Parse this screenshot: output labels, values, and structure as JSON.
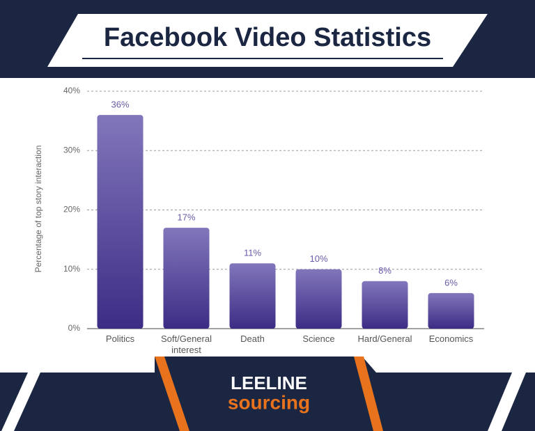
{
  "chart_data": {
    "type": "bar",
    "title": "Facebook Video Statistics",
    "y_label": "Percentage of top story interaction",
    "categories": [
      "Politics",
      "Soft/General interest",
      "Death",
      "Science",
      "Hard/General",
      "Economics"
    ],
    "values": [
      36,
      17,
      11,
      10,
      8,
      6
    ],
    "value_labels": [
      "36%",
      "17%",
      "11%",
      "10%",
      "8%",
      "6%"
    ],
    "color": "#5a4a9c",
    "ylim": [
      0,
      40
    ],
    "yticks": [
      {
        "value": 0,
        "label": "0%"
      },
      {
        "value": 10,
        "label": "10%"
      },
      {
        "value": 20,
        "label": "20%"
      },
      {
        "value": 30,
        "label": "30%"
      },
      {
        "value": 40,
        "label": "40%"
      }
    ],
    "grid": true
  },
  "footer": {
    "brand": "LEELINE",
    "tagline": "sourcing"
  }
}
